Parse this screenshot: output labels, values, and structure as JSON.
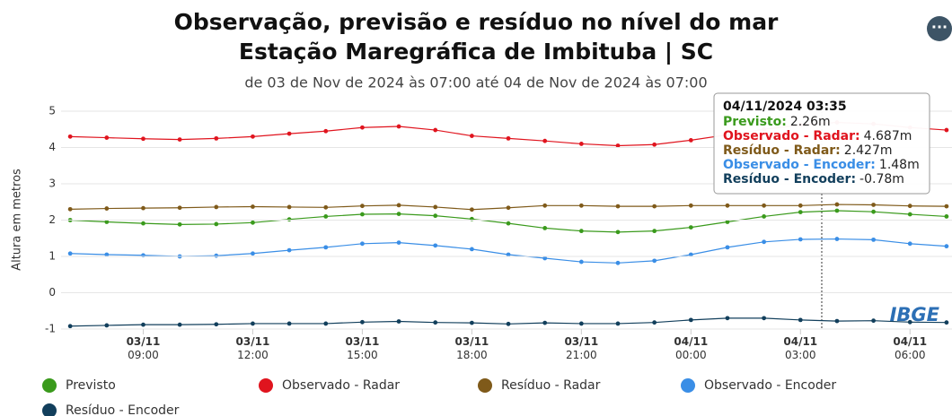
{
  "chart_data": {
    "type": "scatter",
    "title": [
      "Observação, previsão e resíduo no nível do mar",
      "Estação Maregráfica de Imbituba | SC"
    ],
    "subtitle": "de 03 de Nov de 2024 às 07:00 até 04 de Nov de 2024 às 07:00",
    "y_label": "Altura em metros",
    "watermark": "IBGE",
    "x": [
      7,
      8,
      9,
      10,
      11,
      12,
      13,
      14,
      15,
      16,
      17,
      18,
      19,
      20,
      21,
      22,
      23,
      24,
      25,
      26,
      27,
      28,
      29,
      30,
      31
    ],
    "xlim": [
      6.75,
      31.15
    ],
    "xticks": [
      {
        "value": 9,
        "label": "03/11 09:00"
      },
      {
        "value": 12,
        "label": "03/11 12:00"
      },
      {
        "value": 15,
        "label": "03/11 15:00"
      },
      {
        "value": 18,
        "label": "03/11 18:00"
      },
      {
        "value": 21,
        "label": "03/11 21:00"
      },
      {
        "value": 24,
        "label": "04/11 00:00"
      },
      {
        "value": 27,
        "label": "04/11 03:00"
      },
      {
        "value": 30,
        "label": "04/11 06:00"
      }
    ],
    "ylim": [
      -1,
      5
    ],
    "yticks": [
      -1,
      0,
      1,
      2,
      3,
      4,
      5
    ],
    "grid": true,
    "series": [
      {
        "name": "Previsto",
        "color": "#3a9a1c",
        "values": [
          2.0,
          1.95,
          1.91,
          1.88,
          1.89,
          1.93,
          2.02,
          2.1,
          2.16,
          2.17,
          2.12,
          2.03,
          1.91,
          1.78,
          1.7,
          1.67,
          1.7,
          1.8,
          1.95,
          2.1,
          2.22,
          2.26,
          2.23,
          2.16,
          2.1
        ]
      },
      {
        "name": "Observado - Radar",
        "color": "#e0141e",
        "values": [
          4.3,
          4.27,
          4.24,
          4.22,
          4.25,
          4.3,
          4.38,
          4.45,
          4.55,
          4.58,
          4.48,
          4.32,
          4.25,
          4.18,
          4.1,
          4.05,
          4.08,
          4.2,
          4.35,
          4.5,
          4.62,
          4.69,
          4.65,
          4.55,
          4.48
        ]
      },
      {
        "name": "Resíduo - Radar",
        "color": "#7f5a1a",
        "values": [
          2.3,
          2.32,
          2.33,
          2.34,
          2.36,
          2.37,
          2.36,
          2.35,
          2.39,
          2.41,
          2.36,
          2.29,
          2.34,
          2.4,
          2.4,
          2.38,
          2.38,
          2.4,
          2.4,
          2.4,
          2.4,
          2.43,
          2.42,
          2.39,
          2.38
        ]
      },
      {
        "name": "Observado - Encoder",
        "color": "#3a8ee6",
        "values": [
          1.08,
          1.05,
          1.03,
          1.0,
          1.02,
          1.08,
          1.17,
          1.25,
          1.35,
          1.38,
          1.3,
          1.2,
          1.05,
          0.95,
          0.85,
          0.82,
          0.88,
          1.05,
          1.25,
          1.4,
          1.47,
          1.48,
          1.46,
          1.35,
          1.28
        ]
      },
      {
        "name": "Resíduo - Encoder",
        "color": "#123f5c",
        "values": [
          -0.92,
          -0.9,
          -0.88,
          -0.88,
          -0.87,
          -0.85,
          -0.85,
          -0.85,
          -0.81,
          -0.79,
          -0.82,
          -0.83,
          -0.86,
          -0.83,
          -0.85,
          -0.85,
          -0.82,
          -0.75,
          -0.7,
          -0.7,
          -0.75,
          -0.78,
          -0.77,
          -0.81,
          -0.82
        ]
      }
    ],
    "tooltip": {
      "x": 27.583,
      "title": "04/11/2024 03:35",
      "items": [
        {
          "label": "Previsto:",
          "value": "2.26m"
        },
        {
          "label": "Observado - Radar:",
          "value": "4.687m"
        },
        {
          "label": "Resíduo - Radar:",
          "value": "2.427m"
        },
        {
          "label": "Observado - Encoder:",
          "value": "1.48m"
        },
        {
          "label": "Resíduo - Encoder:",
          "value": "-0.78m"
        }
      ]
    }
  }
}
